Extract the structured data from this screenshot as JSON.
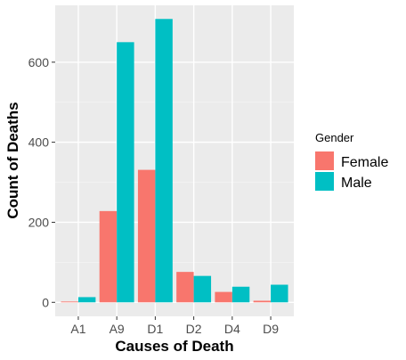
{
  "chart_data": {
    "type": "bar",
    "categories": [
      "A1",
      "A9",
      "D1",
      "D2",
      "D4",
      "D9"
    ],
    "series": [
      {
        "name": "Female",
        "color": "#F8766D",
        "values": [
          2,
          228,
          331,
          76,
          26,
          4
        ]
      },
      {
        "name": "Male",
        "color": "#00BFC4",
        "values": [
          13,
          650,
          708,
          66,
          39,
          44
        ]
      }
    ],
    "xlabel": "Causes of Death",
    "ylabel": "Count of Deaths",
    "ylim": [
      -35,
      742
    ],
    "yticks": [
      0,
      200,
      400,
      600
    ],
    "legend": {
      "title": "Gender",
      "position": "right"
    },
    "grid": true
  }
}
